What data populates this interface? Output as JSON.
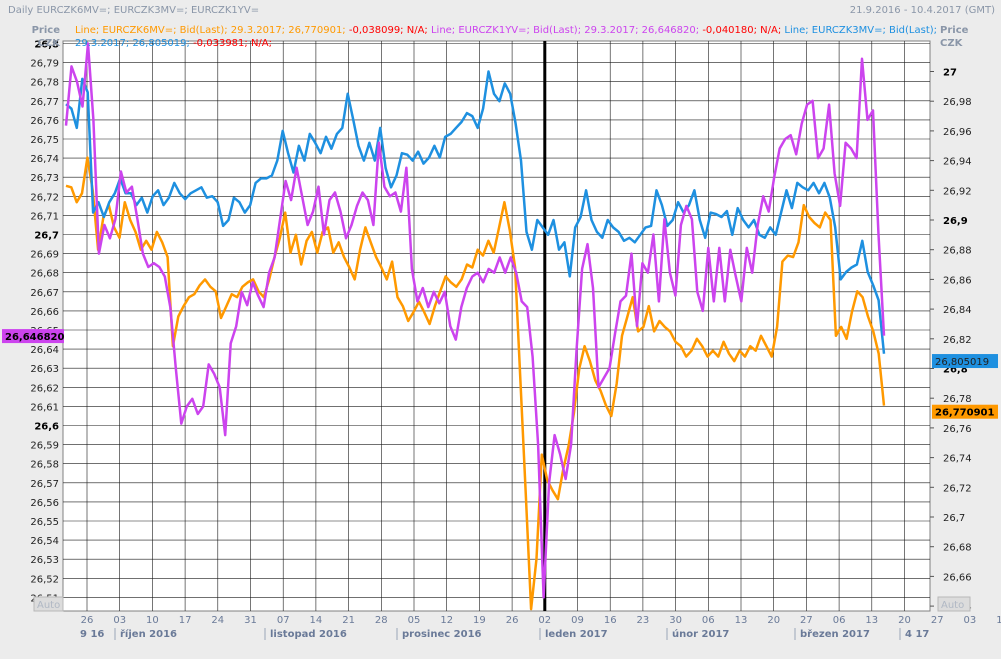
{
  "header": {
    "title": "Daily EURCZK6MV=; EURCZK3MV=; EURCZK1YV=",
    "range": "21.9.2016 - 10.4.2017 (GMT)",
    "price_label": "Price",
    "currency_label": "CZK",
    "auto_label": "Auto"
  },
  "legend": {
    "line1": [
      {
        "text": "Line; EURCZK6MV=; Bid(Last); 29.3.2017; 26,770901; ",
        "color": "#ff9900"
      },
      {
        "text": "-0,038099; N/A; ",
        "color": "#ff0000"
      },
      {
        "text": "Line; EURCZK1YV=; Bid(Last); 29.3.2017; 26,646820; ",
        "color": "#cc44ee"
      },
      {
        "text": "-0,040180; N/A; ",
        "color": "#ff0000"
      },
      {
        "text": "Line; EURCZK3MV=; Bid(Last);",
        "color": "#1e90e0"
      }
    ],
    "line2": [
      {
        "text": "29.3.2017; 26,805019; ",
        "color": "#1e90e0"
      },
      {
        "text": "-0,033981; N/A;",
        "color": "#ff0000"
      }
    ]
  },
  "colors": {
    "orange": "#ff9900",
    "purple": "#cc44ee",
    "blue": "#1e90e0",
    "cursor": "#000000",
    "background": "#ffffff"
  },
  "chart_data": {
    "type": "line",
    "x_tick_labels": [
      "26",
      "03",
      "10",
      "17",
      "24",
      "31",
      "07",
      "14",
      "21",
      "28",
      "05",
      "12",
      "19",
      "26",
      "02",
      "09",
      "16",
      "23",
      "30",
      "06",
      "13",
      "20",
      "27",
      "06",
      "13",
      "20",
      "27",
      "03",
      "10"
    ],
    "month_labels": [
      "9 16",
      "říjen 2016",
      "listopad 2016",
      "prosinec 2016",
      "leden 2017",
      "únor 2017",
      "březen 2017",
      "4 17"
    ],
    "cursor_date": "02",
    "left_axis": {
      "range": [
        26.505,
        26.805
      ],
      "ticks": [
        "26,8",
        "26,79",
        "26,78",
        "26,77",
        "26,76",
        "26,75",
        "26,74",
        "26,73",
        "26,72",
        "26,71",
        "26,7",
        "26,69",
        "26,68",
        "26,67",
        "26,66",
        "26,65",
        "26,64",
        "26,63",
        "26,62",
        "26,61",
        "26,6",
        "26,59",
        "26,58",
        "26,57",
        "26,56",
        "26,55",
        "26,54",
        "26,53",
        "26,52",
        "26,51"
      ],
      "bold_ticks": [
        "26,8",
        "26,7",
        "26,6"
      ],
      "current_value_label": "26,646820",
      "current_value": 26.64682
    },
    "right_axis": {
      "range": [
        26.626,
        27.008
      ],
      "ticks": [
        "27",
        "26,98",
        "26,96",
        "26,94",
        "26,92",
        "26,9",
        "26,88",
        "26,86",
        "26,84",
        "26,82",
        "26,8",
        "26,78",
        "26,76",
        "26,74",
        "26,72",
        "26,7",
        "26,68",
        "26,66",
        "26,64"
      ],
      "bold_ticks": [
        "27",
        "26,9",
        "26,8"
      ],
      "current_value_labels": [
        {
          "text": "26,805019",
          "value": 26.805019,
          "series": "EURCZK3MV="
        },
        {
          "text": "26,770901",
          "value": 26.770901,
          "series": "EURCZK6MV="
        }
      ]
    },
    "series": [
      {
        "name": "EURCZK6MV=",
        "axis": "right",
        "color": "#ff9900",
        "values": [
          26.923,
          26.922,
          26.912,
          26.918,
          26.942,
          26.92,
          26.88,
          26.902,
          26.91,
          26.895,
          26.888,
          26.912,
          26.9,
          26.892,
          26.88,
          26.886,
          26.88,
          26.892,
          26.885,
          26.875,
          26.815,
          26.835,
          26.842,
          26.848,
          26.85,
          26.856,
          26.86,
          26.855,
          26.852,
          26.834,
          26.842,
          26.85,
          26.848,
          26.855,
          26.858,
          26.86,
          26.852,
          26.848,
          26.86,
          26.875,
          26.888,
          26.905,
          26.878,
          26.89,
          26.87,
          26.886,
          26.892,
          26.878,
          26.892,
          26.895,
          26.878,
          26.885,
          26.875,
          26.868,
          26.86,
          26.88,
          26.895,
          26.885,
          26.875,
          26.868,
          26.86,
          26.872,
          26.848,
          26.842,
          26.832,
          26.838,
          26.845,
          26.838,
          26.83,
          26.842,
          26.852,
          26.862,
          26.858,
          26.855,
          26.86,
          26.87,
          26.868,
          26.88,
          26.876,
          26.886,
          26.878,
          26.895,
          26.912,
          26.893,
          26.868,
          26.792,
          26.715,
          26.638,
          26.672,
          26.742,
          26.725,
          26.718,
          26.712,
          26.732,
          26.748,
          26.77,
          26.8,
          26.815,
          26.805,
          26.792,
          26.785,
          26.775,
          26.768,
          26.79,
          26.822,
          26.835,
          26.848,
          26.825,
          26.828,
          26.842,
          26.825,
          26.832,
          26.828,
          26.825,
          26.818,
          26.815,
          26.808,
          26.812,
          26.82,
          26.815,
          26.808,
          26.812,
          26.808,
          26.818,
          26.81,
          26.805,
          26.812,
          26.808,
          26.815,
          26.812,
          26.822,
          26.815,
          26.808,
          26.828,
          26.872,
          26.876,
          26.875,
          26.885,
          26.91,
          26.902,
          26.898,
          26.895,
          26.905,
          26.9,
          26.822,
          26.828,
          26.82,
          26.838,
          26.852,
          26.848,
          26.835,
          26.825,
          26.81,
          26.775
        ]
      },
      {
        "name": "EURCZK3MV=",
        "axis": "right",
        "color": "#1e90e0",
        "values": [
          26.978,
          26.975,
          26.962,
          26.995,
          26.986,
          26.905,
          26.912,
          26.902,
          26.912,
          26.918,
          26.928,
          26.918,
          26.918,
          26.91,
          26.915,
          26.905,
          26.916,
          26.92,
          26.91,
          26.915,
          26.925,
          26.918,
          26.914,
          26.918,
          26.92,
          26.922,
          26.915,
          26.916,
          26.912,
          26.896,
          26.9,
          26.915,
          26.912,
          26.905,
          26.91,
          26.925,
          26.928,
          26.928,
          26.93,
          26.94,
          26.96,
          26.945,
          26.932,
          26.95,
          26.94,
          26.958,
          26.952,
          26.945,
          26.956,
          26.948,
          26.958,
          26.962,
          26.985,
          26.968,
          26.95,
          26.94,
          26.952,
          26.94,
          26.962,
          26.935,
          26.922,
          26.93,
          26.945,
          26.944,
          26.94,
          26.946,
          26.938,
          26.942,
          26.95,
          26.942,
          26.956,
          26.958,
          26.962,
          26.966,
          26.972,
          26.97,
          26.962,
          26.975,
          27.0,
          26.985,
          26.98,
          26.992,
          26.985,
          26.965,
          26.94,
          26.892,
          26.88,
          26.9,
          26.895,
          26.89,
          26.9,
          26.88,
          26.885,
          26.862,
          26.895,
          26.902,
          26.92,
          26.9,
          26.892,
          26.888,
          26.9,
          26.895,
          26.892,
          26.886,
          26.888,
          26.885,
          26.89,
          26.895,
          26.896,
          26.92,
          26.91,
          26.896,
          26.9,
          26.912,
          26.905,
          26.91,
          26.92,
          26.9,
          26.888,
          26.905,
          26.904,
          26.902,
          26.906,
          26.89,
          26.908,
          26.9,
          26.895,
          26.9,
          26.89,
          26.888,
          26.895,
          26.89,
          26.905,
          26.92,
          26.908,
          26.925,
          26.922,
          26.92,
          26.925,
          26.918,
          26.925,
          26.915,
          26.895,
          26.86,
          26.865,
          26.868,
          26.87,
          26.886,
          26.865,
          26.856,
          26.846,
          26.81
        ]
      },
      {
        "name": "EURCZK1YV=",
        "axis": "left",
        "color": "#cc44ee",
        "values": [
          26.757,
          26.788,
          26.78,
          26.767,
          26.8,
          26.76,
          26.69,
          26.705,
          26.698,
          26.708,
          26.733,
          26.722,
          26.725,
          26.708,
          26.69,
          26.683,
          26.685,
          26.683,
          26.678,
          26.662,
          26.63,
          26.601,
          26.61,
          26.614,
          26.606,
          26.61,
          26.632,
          26.627,
          26.62,
          26.595,
          26.643,
          26.652,
          26.67,
          26.663,
          26.675,
          26.668,
          26.662,
          26.68,
          26.688,
          26.708,
          26.728,
          26.718,
          26.735,
          26.72,
          26.705,
          26.712,
          26.725,
          26.7,
          26.718,
          26.722,
          26.712,
          26.698,
          26.705,
          26.715,
          26.722,
          26.718,
          26.705,
          26.748,
          26.725,
          26.72,
          26.722,
          26.712,
          26.735,
          26.682,
          26.665,
          26.672,
          26.662,
          26.67,
          26.664,
          26.67,
          26.652,
          26.645,
          26.662,
          26.672,
          26.678,
          26.68,
          26.675,
          26.682,
          26.68,
          26.688,
          26.68,
          26.688,
          26.68,
          26.665,
          26.662,
          26.636,
          26.59,
          26.51,
          26.57,
          26.595,
          26.585,
          26.572,
          26.59,
          26.64,
          26.682,
          26.695,
          26.672,
          26.62,
          26.625,
          26.63,
          26.648,
          26.665,
          26.668,
          26.69,
          26.652,
          26.685,
          26.68,
          26.7,
          26.665,
          26.708,
          26.68,
          26.668,
          26.705,
          26.715,
          26.708,
          26.67,
          26.66,
          26.693,
          26.665,
          26.693,
          26.665,
          26.692,
          26.678,
          26.665,
          26.693,
          26.68,
          26.705,
          26.72,
          26.712,
          26.73,
          26.745,
          26.75,
          26.752,
          26.742,
          26.758,
          26.768,
          26.77,
          26.74,
          26.745,
          26.768,
          26.732,
          26.715,
          26.748,
          26.745,
          26.74,
          26.792,
          26.76,
          26.765,
          26.7,
          26.647
        ]
      }
    ]
  }
}
